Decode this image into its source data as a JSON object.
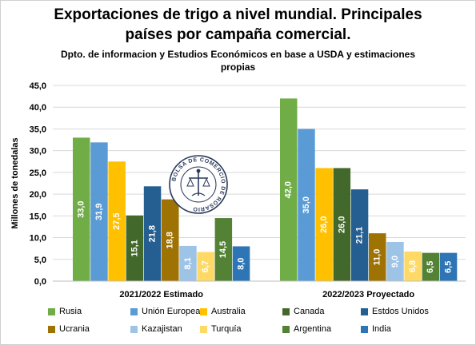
{
  "title_lines": [
    "Exportaciones de trigo a nivel mundial. Principales",
    "países por campaña comercial."
  ],
  "subtitle_lines": [
    "Dpto. de informacion y Estudios Económicos en base a USDA y estimaciones",
    "propias"
  ],
  "logo_text": "BOLSA DE COMERCIO DE ROSARIO",
  "chart_data": {
    "type": "bar",
    "categories": [
      "2021/2022 Estimado",
      "2022/2023 Proyectado"
    ],
    "ylabel": "Millones de tonedalas",
    "ylim": [
      0,
      45
    ],
    "yticks": [
      "0,0",
      "5,0",
      "10,0",
      "15,0",
      "20,0",
      "25,0",
      "30,0",
      "35,0",
      "40,0",
      "45,0"
    ],
    "grid": true,
    "legend_position": "bottom",
    "series": [
      {
        "name": "Rusia",
        "color": "#70ad47",
        "values": [
          33.0,
          42.0
        ],
        "labels": [
          "33,0",
          "42,0"
        ]
      },
      {
        "name": "Unión Europea",
        "color": "#5b9bd5",
        "values": [
          31.9,
          35.0
        ],
        "labels": [
          "31,9",
          "35,0"
        ]
      },
      {
        "name": "Australia",
        "color": "#ffc000",
        "values": [
          27.5,
          26.0
        ],
        "labels": [
          "27,5",
          "26,0"
        ]
      },
      {
        "name": "Canada",
        "color": "#43682b",
        "values": [
          15.1,
          26.0
        ],
        "labels": [
          "15,1",
          "26,0"
        ]
      },
      {
        "name": "Estdos Unidos",
        "color": "#255e91",
        "values": [
          21.8,
          21.1
        ],
        "labels": [
          "21,8",
          "21,1"
        ]
      },
      {
        "name": "Ucrania",
        "color": "#9e7203",
        "values": [
          18.8,
          11.0
        ],
        "labels": [
          "18,8",
          "11,0"
        ]
      },
      {
        "name": "Kazajistan",
        "color": "#9dc3e6",
        "values": [
          8.1,
          9.0
        ],
        "labels": [
          "8,1",
          "9,0"
        ]
      },
      {
        "name": "Turquía",
        "color": "#ffd966",
        "values": [
          6.7,
          6.8
        ],
        "labels": [
          "6,7",
          "6,8"
        ]
      },
      {
        "name": "Argentina",
        "color": "#548235",
        "values": [
          14.5,
          6.5
        ],
        "labels": [
          "14,5",
          "6,5"
        ]
      },
      {
        "name": "India",
        "color": "#2e75b6",
        "values": [
          8.0,
          6.5
        ],
        "labels": [
          "8,0",
          "6,5"
        ]
      }
    ]
  }
}
